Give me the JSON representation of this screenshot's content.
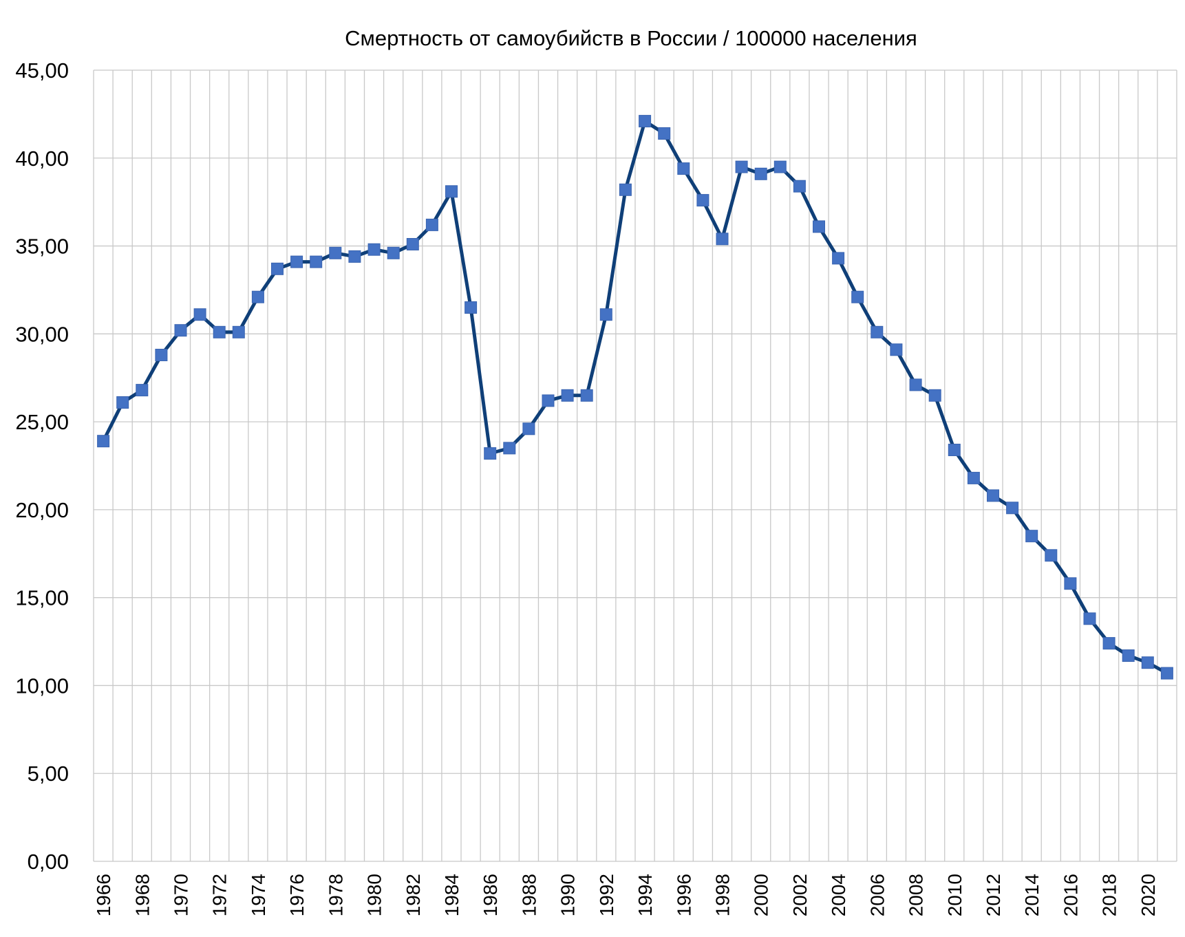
{
  "chart_data": {
    "type": "line",
    "title": "Смертность от самоубийств в России / 100000 населения",
    "xlabel": "",
    "ylabel": "",
    "ylim": [
      0,
      45
    ],
    "y_ticks": [
      "0,00",
      "5,00",
      "10,00",
      "15,00",
      "20,00",
      "25,00",
      "30,00",
      "35,00",
      "40,00",
      "45,00"
    ],
    "x_tick_labels": [
      "1966",
      "1968",
      "1970",
      "1972",
      "1974",
      "1976",
      "1978",
      "1980",
      "1982",
      "1984",
      "1986",
      "1988",
      "1990",
      "1992",
      "1994",
      "1996",
      "1998",
      "2000",
      "2002",
      "2004",
      "2006",
      "2008",
      "2010",
      "2012",
      "2014",
      "2016",
      "2018",
      "2020"
    ],
    "grid": true,
    "legend": "none",
    "line_color": "#0f3f78",
    "marker_color": "#4472c4",
    "x": [
      1966,
      1967,
      1968,
      1969,
      1970,
      1971,
      1972,
      1973,
      1974,
      1975,
      1976,
      1977,
      1978,
      1979,
      1980,
      1981,
      1982,
      1983,
      1984,
      1985,
      1986,
      1987,
      1988,
      1989,
      1990,
      1991,
      1992,
      1993,
      1994,
      1995,
      1996,
      1997,
      1998,
      1999,
      2000,
      2001,
      2002,
      2003,
      2004,
      2005,
      2006,
      2007,
      2008,
      2009,
      2010,
      2011,
      2012,
      2013,
      2014,
      2015,
      2016,
      2017,
      2018,
      2019,
      2020,
      2021
    ],
    "values": [
      23.9,
      26.1,
      26.8,
      28.8,
      30.2,
      31.1,
      30.1,
      30.1,
      32.1,
      33.7,
      34.1,
      34.1,
      34.6,
      34.4,
      34.8,
      34.6,
      35.1,
      36.2,
      38.1,
      31.5,
      23.2,
      23.5,
      24.6,
      26.2,
      26.5,
      26.5,
      31.1,
      38.2,
      42.1,
      41.4,
      39.4,
      37.6,
      35.4,
      39.5,
      39.1,
      39.5,
      38.4,
      36.1,
      34.3,
      32.1,
      30.1,
      29.1,
      27.1,
      26.5,
      23.4,
      21.8,
      20.8,
      20.1,
      18.5,
      17.4,
      15.8,
      13.8,
      12.4,
      11.7,
      11.3,
      10.7
    ]
  }
}
